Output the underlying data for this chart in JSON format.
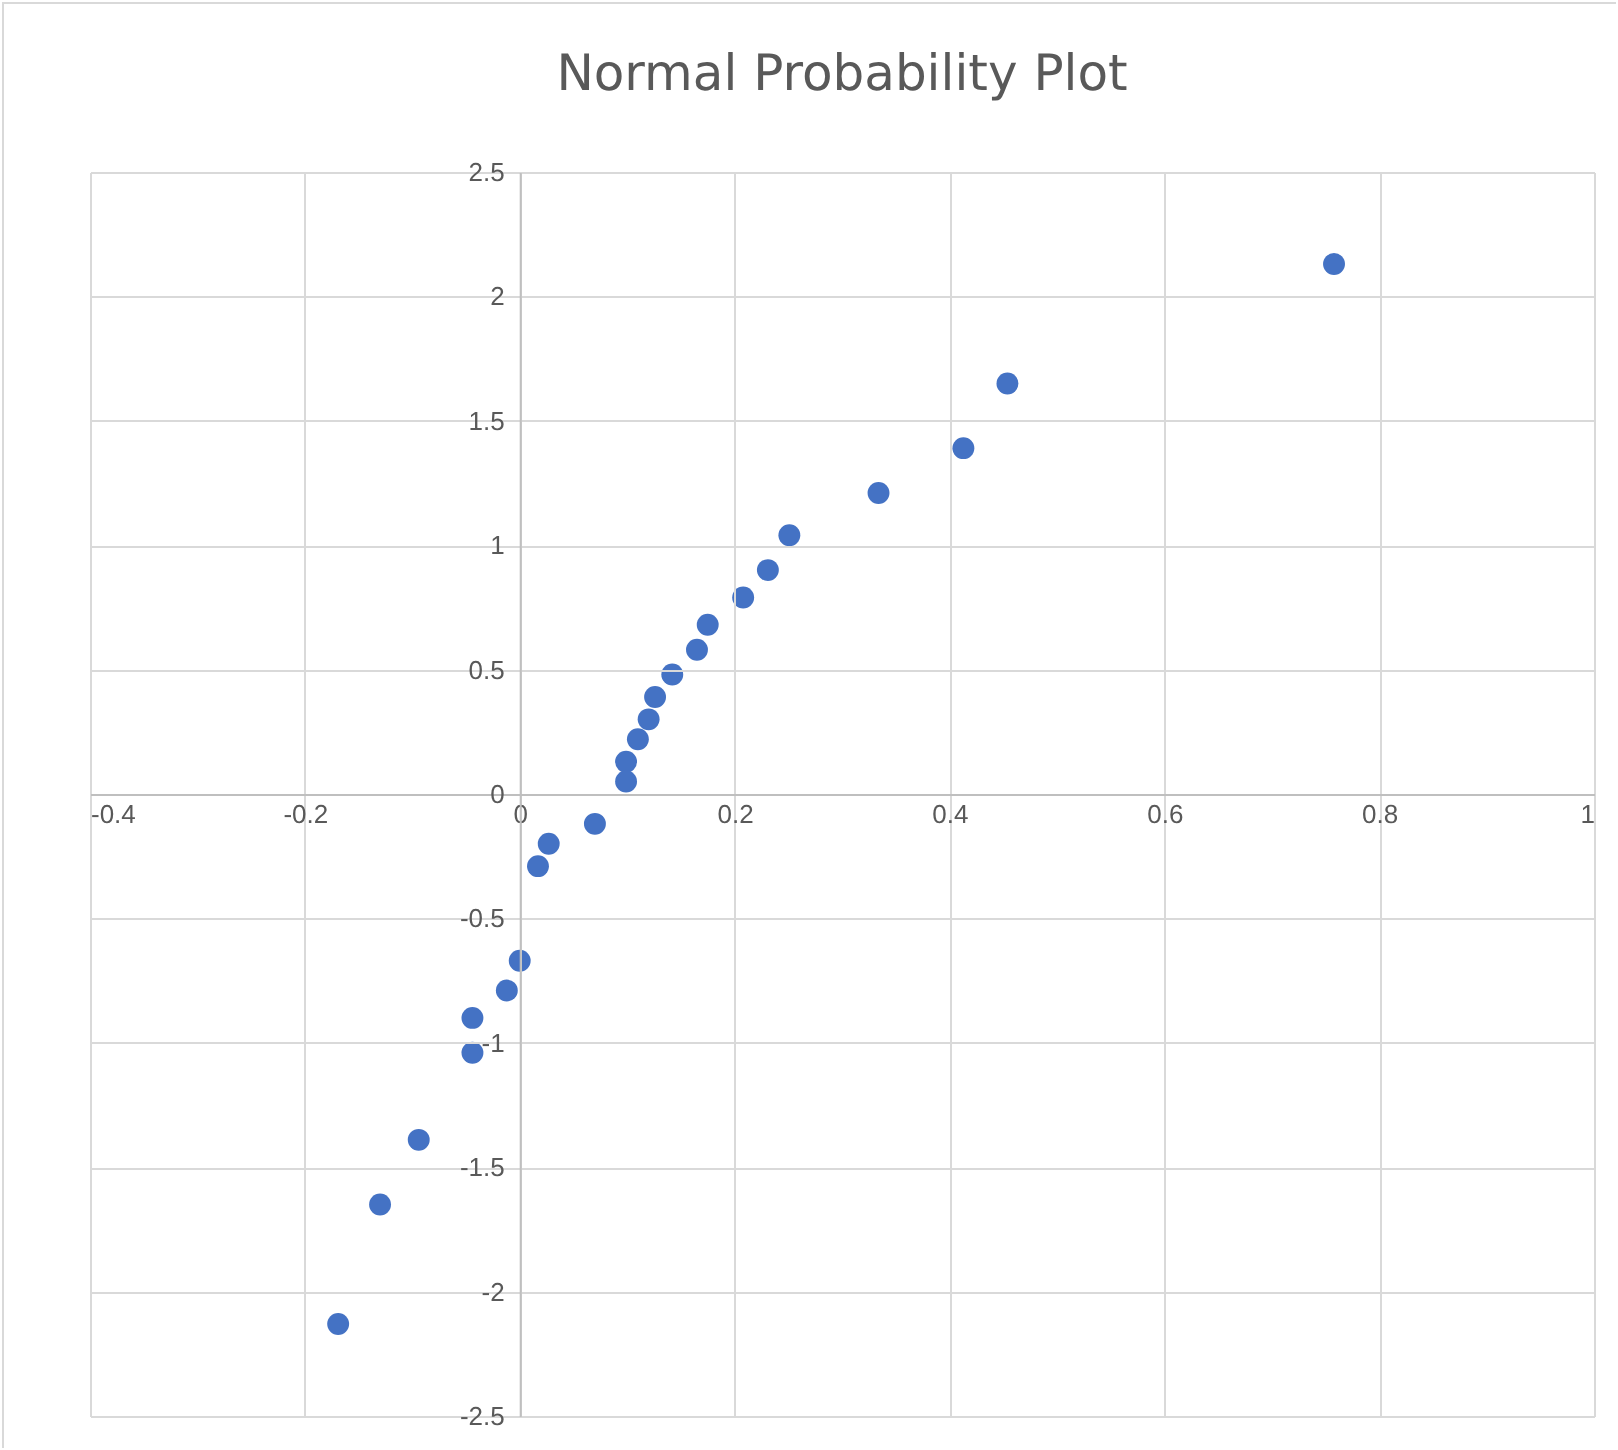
{
  "chart_data": {
    "type": "scatter",
    "title": "Normal Probability Plot",
    "x": [
      0.758,
      0.454,
      0.413,
      0.334,
      0.251,
      0.231,
      0.208,
      0.175,
      0.165,
      0.142,
      0.126,
      0.12,
      0.11,
      0.099,
      0.099,
      0.07,
      0.027,
      0.017,
      0.0,
      -0.012,
      -0.044,
      -0.044,
      -0.094,
      -0.13,
      -0.169
    ],
    "series": [
      {
        "color": "#4472c4",
        "values": [
          2.13,
          1.65,
          1.39,
          1.21,
          1.04,
          0.9,
          0.79,
          0.68,
          0.58,
          0.48,
          0.39,
          0.3,
          0.22,
          0.13,
          0.05,
          -0.12,
          -0.2,
          -0.29,
          -0.67,
          -0.79,
          -0.9,
          -1.04,
          -1.39,
          -1.65,
          -2.13
        ]
      }
    ],
    "xlim": [
      -0.4,
      1
    ],
    "xticks": [
      -0.4,
      -0.2,
      0,
      0.2,
      0.4,
      0.6,
      0.8,
      1
    ],
    "ylim": [
      -2.5,
      2.5
    ],
    "yticks": [
      -2.5,
      -2,
      -1.5,
      -1,
      -0.5,
      0,
      0.5,
      1,
      1.5,
      2,
      2.5
    ],
    "grid": true,
    "marker": "circle"
  }
}
